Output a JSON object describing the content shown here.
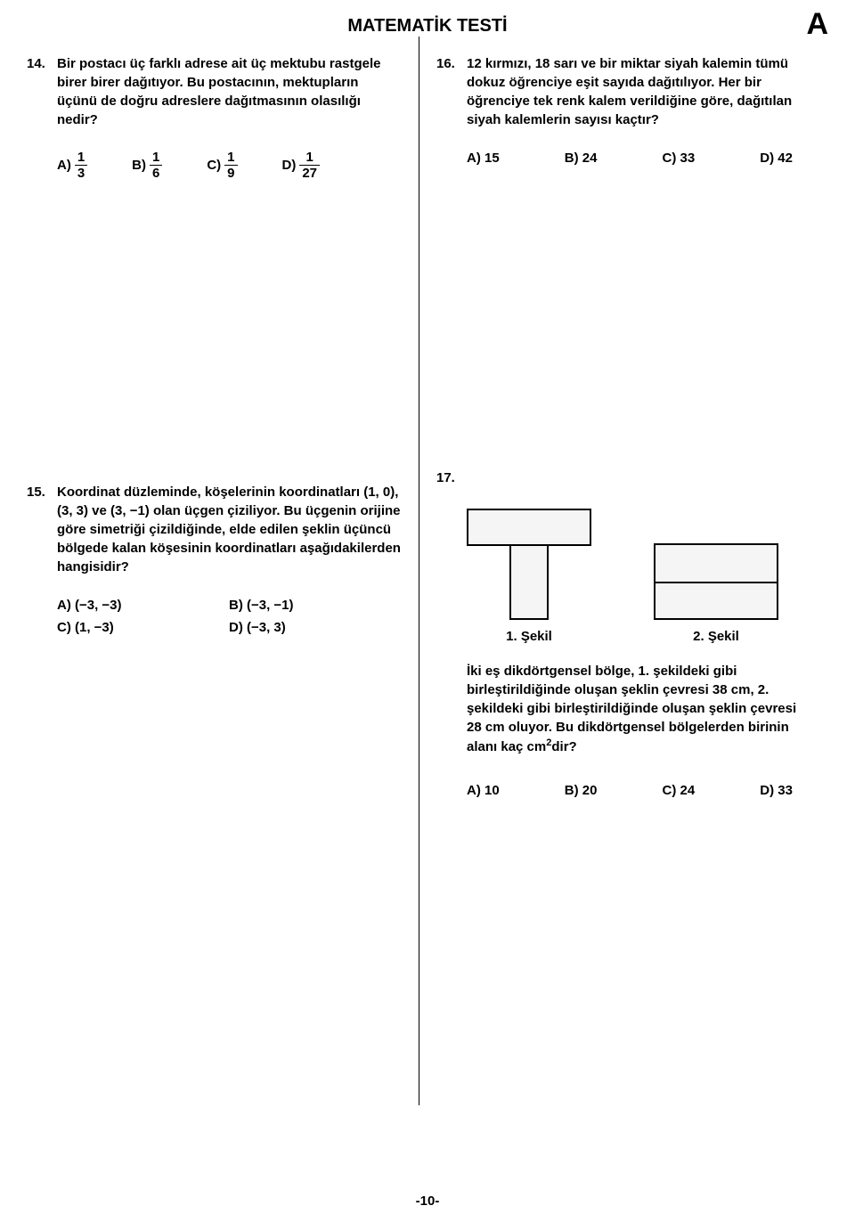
{
  "header": {
    "title": "MATEMATİK TESTİ",
    "booklet": "A"
  },
  "q14": {
    "num": "14.",
    "text": "Bir postacı üç farklı adrese ait üç mektubu rastgele birer birer dağıtıyor. Bu postacının, mektupların üçünü de doğru adreslere dağıtmasının olasılığı nedir?",
    "answers": [
      {
        "label": "A)",
        "num": "1",
        "den": "3"
      },
      {
        "label": "B)",
        "num": "1",
        "den": "6"
      },
      {
        "label": "C)",
        "num": "1",
        "den": "9"
      },
      {
        "label": "D)",
        "num": "1",
        "den": "27"
      }
    ]
  },
  "q15": {
    "num": "15.",
    "text": "Koordinat düzleminde, köşelerinin koordinatları (1, 0), (3, 3) ve (3, −1) olan üçgen çiziliyor. Bu üçgenin orijine göre simetriği çizildiğinde, elde edilen şeklin üçüncü bölgede kalan köşesinin koordinatları aşağıdakilerden hangisidir?",
    "a": "A) (−3, −3)",
    "b": "B) (−3, −1)",
    "c": "C) (1, −3)",
    "d": "D) (−3, 3)"
  },
  "q16": {
    "num": "16.",
    "text": "12 kırmızı, 18 sarı ve bir miktar siyah kalemin tümü dokuz öğrenciye eşit sayıda dağıtılıyor. Her bir öğrenciye tek renk kalem verildiğine göre, dağıtılan siyah kalemlerin sayısı kaçtır?",
    "a": "A) 15",
    "b": "B) 24",
    "c": "C) 33",
    "d": "D) 42"
  },
  "q17": {
    "num": "17.",
    "fig1_label": "1. Şekil",
    "fig2_label": "2. Şekil",
    "text_pre": "İki eş dikdörtgensel bölge, 1. şekildeki gibi birleştirildiğinde oluşan şeklin çevresi 38 cm, 2. şekildeki gibi birleştirildiğinde oluşan şeklin çevresi 28 cm oluyor. Bu dikdörtgensel bölgelerden birinin alanı kaç cm",
    "text_sup": "2",
    "text_post": "dir?",
    "a": "A) 10",
    "b": "B) 20",
    "c": "C) 24",
    "d": "D) 33"
  },
  "figure_colors": {
    "fill": "#f5f5f5",
    "border": "#000000"
  },
  "page_number": "-10-"
}
